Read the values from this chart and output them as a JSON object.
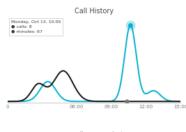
{
  "title": "Call History",
  "background_color": "#ffffff",
  "x_ticks": [
    0,
    360,
    540,
    720,
    900
  ],
  "x_tick_labels": [
    "0",
    "06:00",
    "09:00",
    "12:00",
    "15:00"
  ],
  "calls_color": "#111111",
  "minutes_color": "#00b0d0",
  "calls_gaussians": [
    {
      "amp": 1.0,
      "mu": 290,
      "sigma": 50
    },
    {
      "amp": 0.55,
      "mu": 160,
      "sigma": 35
    }
  ],
  "minutes_gaussians": [
    {
      "amp": 2.5,
      "mu": 640,
      "sigma": 30
    },
    {
      "amp": 0.65,
      "mu": 210,
      "sigma": 40
    },
    {
      "amp": 0.35,
      "mu": 760,
      "sigma": 35
    }
  ],
  "dot_t": 620,
  "minutes_peak_t": 640,
  "ylim": [
    -0.05,
    2.8
  ],
  "xlim": [
    0,
    900
  ],
  "title_fontsize": 7,
  "tick_fontsize": 5,
  "legend_fontsize": 5.5
}
